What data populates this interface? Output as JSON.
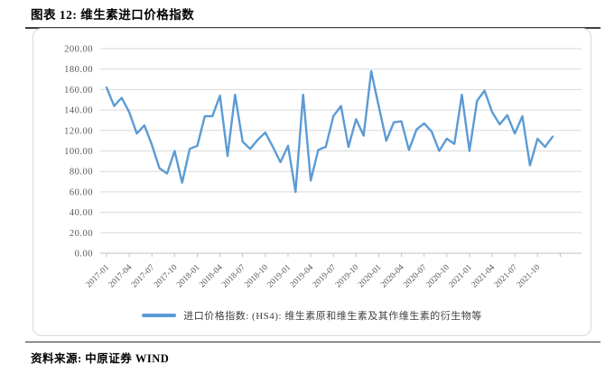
{
  "header": {
    "title": "图表 12: 维生素进口价格指数"
  },
  "footer": {
    "source_label": "资料来源: 中原证券  WIND"
  },
  "colors": {
    "line": "#5B9BD5",
    "gridline": "#D9D9D9",
    "axis": "#BFBFBF",
    "tick_text": "#595959",
    "title_rule": "#3F3F3F",
    "frame_border": "#D9D9D9"
  },
  "chart_data": {
    "type": "line",
    "title": "",
    "xlabel": "",
    "ylabel": "",
    "grid": true,
    "legend_position": "bottom",
    "legend": "进口价格指数: (HS4): 维生素原和维生素及其作维生素的衍生物等",
    "ylim": [
      0,
      200
    ],
    "ytick_step": 20,
    "ytick_labels": [
      "0.00",
      "20.00",
      "40.00",
      "60.00",
      "80.00",
      "100.00",
      "120.00",
      "140.00",
      "160.00",
      "180.00",
      "200.00"
    ],
    "xtick_every": 3,
    "xtick_labels": [
      "2017-01",
      "2017-04",
      "2017-07",
      "2017-10",
      "2018-01",
      "2018-04",
      "2018-07",
      "2018-10",
      "2019-01",
      "2019-04",
      "2019-07",
      "2019-10",
      "2020-01",
      "2020-04",
      "2020-07",
      "2020-10",
      "2021-01",
      "2021-04",
      "2021-07",
      "2021-10"
    ],
    "x": [
      "2017-01",
      "2017-02",
      "2017-03",
      "2017-04",
      "2017-05",
      "2017-06",
      "2017-07",
      "2017-08",
      "2017-09",
      "2017-10",
      "2017-11",
      "2017-12",
      "2018-01",
      "2018-02",
      "2018-03",
      "2018-04",
      "2018-05",
      "2018-06",
      "2018-07",
      "2018-08",
      "2018-09",
      "2018-10",
      "2018-11",
      "2018-12",
      "2019-01",
      "2019-02",
      "2019-03",
      "2019-04",
      "2019-05",
      "2019-06",
      "2019-07",
      "2019-08",
      "2019-09",
      "2019-10",
      "2019-11",
      "2019-12",
      "2020-01",
      "2020-02",
      "2020-03",
      "2020-04",
      "2020-05",
      "2020-06",
      "2020-07",
      "2020-08",
      "2020-09",
      "2020-10",
      "2020-11",
      "2020-12",
      "2021-01",
      "2021-02",
      "2021-03",
      "2021-04",
      "2021-05",
      "2021-06",
      "2021-07",
      "2021-08",
      "2021-09",
      "2021-10",
      "2021-11",
      "2021-12"
    ],
    "values": [
      162,
      144,
      152,
      138,
      117,
      125,
      106,
      83,
      78,
      100,
      69,
      102,
      105,
      134,
      134,
      154,
      95,
      155,
      109,
      102,
      111,
      118,
      104,
      89,
      105,
      60,
      155,
      71,
      101,
      104,
      134,
      144,
      104,
      131,
      115,
      178,
      144,
      110,
      128,
      129,
      101,
      121,
      127,
      119,
      100,
      112,
      107,
      155,
      100,
      149,
      159,
      138,
      126,
      135,
      117,
      134,
      86,
      112,
      104,
      114
    ]
  }
}
